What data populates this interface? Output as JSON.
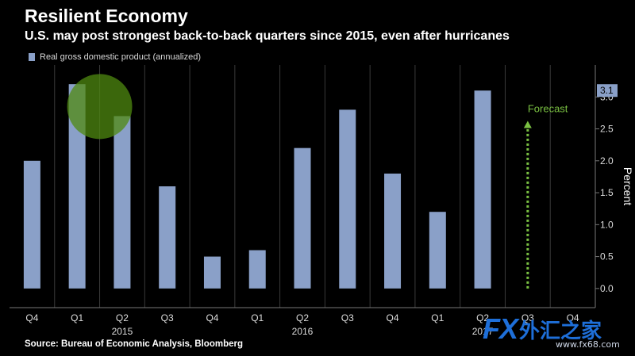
{
  "title": "Resilient Economy",
  "subtitle": "U.S. may post strongest back-to-back quarters since 2015, even after hurricanes",
  "legend_label": "Real gross domestic product (annualized)",
  "source": "Source: Bureau of Economic Analysis, Bloomberg",
  "colors": {
    "bar": "#8aa0c8",
    "grid": "#3a3a3a",
    "forecast": "#7ac142",
    "highlight": "#4f8a10"
  },
  "watermark": {
    "fx": "FX",
    "cn": "外汇之家",
    "url": "www.fx68.com"
  },
  "chart_data": {
    "type": "bar",
    "categories": [
      "Q4",
      "Q1",
      "Q2",
      "Q3",
      "Q4",
      "Q1",
      "Q2",
      "Q3",
      "Q4",
      "Q1",
      "Q2",
      "Q3",
      "Q4"
    ],
    "year_labels": [
      {
        "label": "2015",
        "index": 2
      },
      {
        "label": "2016",
        "index": 6
      },
      {
        "label": "2017",
        "index": 10
      }
    ],
    "values": [
      2.0,
      3.2,
      2.7,
      1.6,
      0.5,
      0.6,
      2.2,
      2.8,
      1.8,
      1.2,
      3.1,
      null,
      null
    ],
    "series": [
      {
        "name": "Real gross domestic product (annualized)",
        "values": [
          2.0,
          3.2,
          2.7,
          1.6,
          0.5,
          0.6,
          2.2,
          2.8,
          1.8,
          1.2,
          3.1,
          null,
          null
        ]
      }
    ],
    "last_value_label": "3.1",
    "ylabel": "Percent",
    "ylim": [
      -0.3,
      3.5
    ],
    "yticks": [
      0.0,
      0.5,
      1.0,
      1.5,
      2.0,
      2.5,
      3.0
    ],
    "ytick_labels": [
      "0.0",
      "0.5",
      "1.0",
      "1.5",
      "2.0",
      "2.5",
      "3.0"
    ],
    "forecast": {
      "label": "Forecast",
      "category_index": 11,
      "value": 2.6
    },
    "highlight": {
      "category_index": 1.5,
      "value": 2.85
    },
    "grid": "vertical",
    "legend_position": "top-left"
  }
}
